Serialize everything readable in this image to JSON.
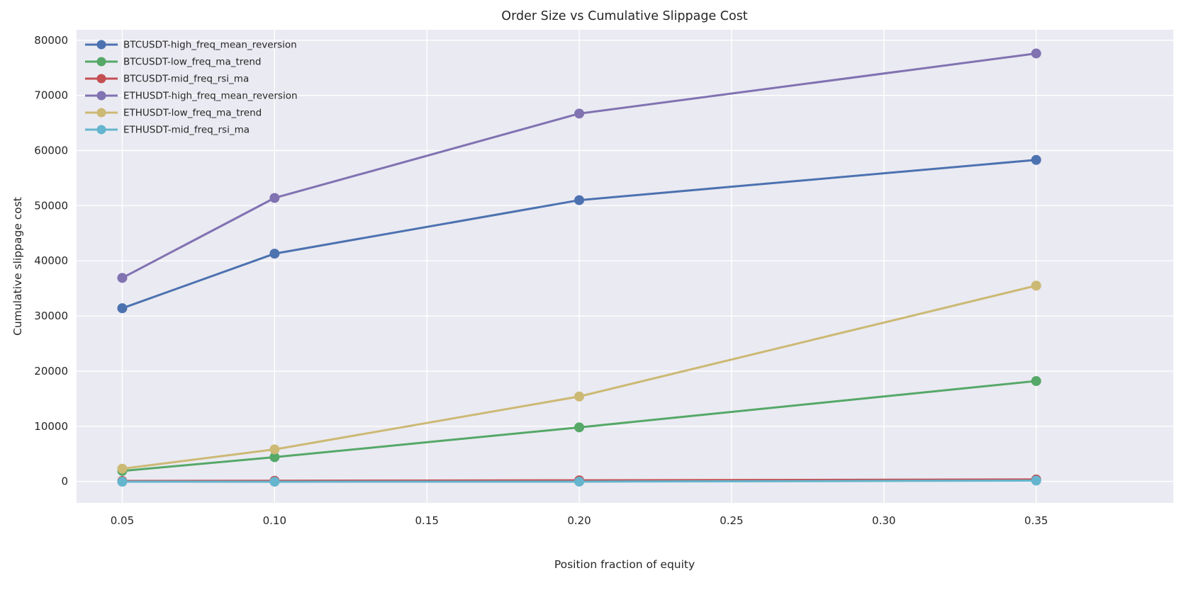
{
  "chart_data": {
    "type": "line",
    "title": "Order Size vs Cumulative Slippage Cost",
    "xlabel": "Position fraction of equity",
    "ylabel": "Cumulative slippage cost",
    "x": [
      0.05,
      0.1,
      0.2,
      0.35
    ],
    "series": [
      {
        "name": "BTCUSDT-high_freq_mean_reversion",
        "color": "#4c72b0",
        "values": [
          31400,
          41300,
          51000,
          58300
        ]
      },
      {
        "name": "BTCUSDT-low_freq_ma_trend",
        "color": "#55a868",
        "values": [
          1900,
          4400,
          9800,
          18200
        ]
      },
      {
        "name": "BTCUSDT-mid_freq_rsi_ma",
        "color": "#c44e52",
        "values": [
          80,
          120,
          200,
          350
        ]
      },
      {
        "name": "ETHUSDT-high_freq_mean_reversion",
        "color": "#8172b2",
        "values": [
          36900,
          51400,
          66700,
          77600
        ]
      },
      {
        "name": "ETHUSDT-low_freq_ma_trend",
        "color": "#ccb974",
        "values": [
          2300,
          5800,
          15400,
          35500
        ]
      },
      {
        "name": "ETHUSDT-mid_freq_rsi_ma",
        "color": "#64b5cd",
        "values": [
          -50,
          -60,
          -40,
          150
        ]
      }
    ],
    "xticks": [
      0.05,
      0.1,
      0.15,
      0.2,
      0.25,
      0.3,
      0.35
    ],
    "yticks": [
      0,
      10000,
      20000,
      30000,
      40000,
      50000,
      60000,
      70000,
      80000
    ],
    "xlim": [
      0.035,
      0.395
    ],
    "ylim": [
      -3900,
      81900
    ],
    "grid": true,
    "legend_position": "upper left",
    "plot_bg": "#eaeaf2",
    "grid_color": "#ffffff",
    "text_color": "#262626",
    "figure_bg": "#ffffff"
  }
}
